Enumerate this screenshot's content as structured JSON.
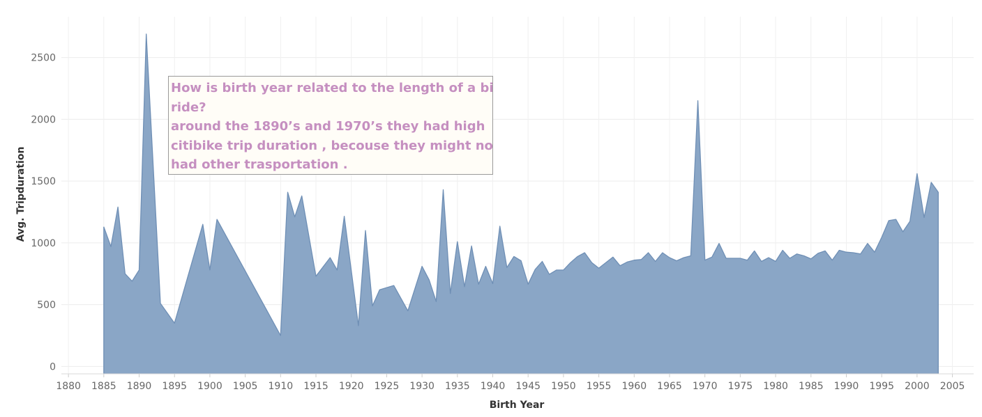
{
  "chart_data": {
    "type": "area",
    "xlabel": "Birth Year",
    "ylabel": "Avg. Tripduration",
    "xlim": [
      1879,
      2008
    ],
    "ylim": [
      -60,
      2830
    ],
    "x_ticks": [
      1880,
      1885,
      1890,
      1895,
      1900,
      1905,
      1910,
      1915,
      1920,
      1925,
      1930,
      1935,
      1940,
      1945,
      1950,
      1955,
      1960,
      1965,
      1970,
      1975,
      1980,
      1985,
      1990,
      1995,
      2000,
      2005
    ],
    "y_ticks": [
      0,
      500,
      1000,
      1500,
      2000,
      2500
    ],
    "grid": true,
    "series": [
      {
        "color": "#8aa6c6",
        "line_color": "#6f8fb5",
        "x": [
          1885,
          1886,
          1887,
          1888,
          1889,
          1890,
          1891,
          1893,
          1895,
          1899,
          1900,
          1901,
          1910,
          1911,
          1912,
          1913,
          1915,
          1917,
          1918,
          1919,
          1921,
          1922,
          1923,
          1924,
          1926,
          1928,
          1930,
          1931,
          1932,
          1933,
          1934,
          1935,
          1936,
          1937,
          1938,
          1939,
          1940,
          1941,
          1942,
          1943,
          1944,
          1945,
          1946,
          1947,
          1948,
          1949,
          1950,
          1951,
          1952,
          1953,
          1954,
          1955,
          1956,
          1957,
          1958,
          1959,
          1960,
          1961,
          1962,
          1963,
          1964,
          1965,
          1966,
          1967,
          1968,
          1969,
          1970,
          1971,
          1972,
          1973,
          1974,
          1975,
          1976,
          1977,
          1978,
          1979,
          1980,
          1981,
          1982,
          1983,
          1984,
          1985,
          1986,
          1987,
          1988,
          1989,
          1990,
          1991,
          1992,
          1993,
          1994,
          1995,
          1996,
          1997,
          1998,
          1999,
          2000,
          2001,
          2002,
          2003
        ],
        "values": [
          1130,
          970,
          1290,
          750,
          690,
          780,
          2690,
          510,
          350,
          1150,
          780,
          1190,
          250,
          1410,
          1210,
          1380,
          730,
          880,
          780,
          1215,
          330,
          1100,
          490,
          620,
          655,
          450,
          810,
          700,
          525,
          1430,
          590,
          1010,
          645,
          975,
          665,
          810,
          670,
          1135,
          800,
          890,
          855,
          665,
          785,
          850,
          745,
          780,
          780,
          840,
          890,
          920,
          840,
          795,
          840,
          885,
          815,
          845,
          860,
          865,
          920,
          850,
          920,
          880,
          855,
          880,
          895,
          2150,
          860,
          885,
          995,
          875,
          875,
          875,
          860,
          935,
          850,
          880,
          850,
          940,
          875,
          910,
          895,
          870,
          915,
          935,
          860,
          940,
          925,
          920,
          910,
          995,
          925,
          1045,
          1180,
          1190,
          1090,
          1175,
          1560,
          1205,
          1490,
          1410
        ]
      }
    ],
    "annotation": {
      "lines": [
        "How is birth year related to the length of a bike",
        "ride?",
        "around the 1890’s and 1970’s they had high",
        "citibike trip duration , becouse they might not",
        "had other trasportation ."
      ]
    }
  }
}
